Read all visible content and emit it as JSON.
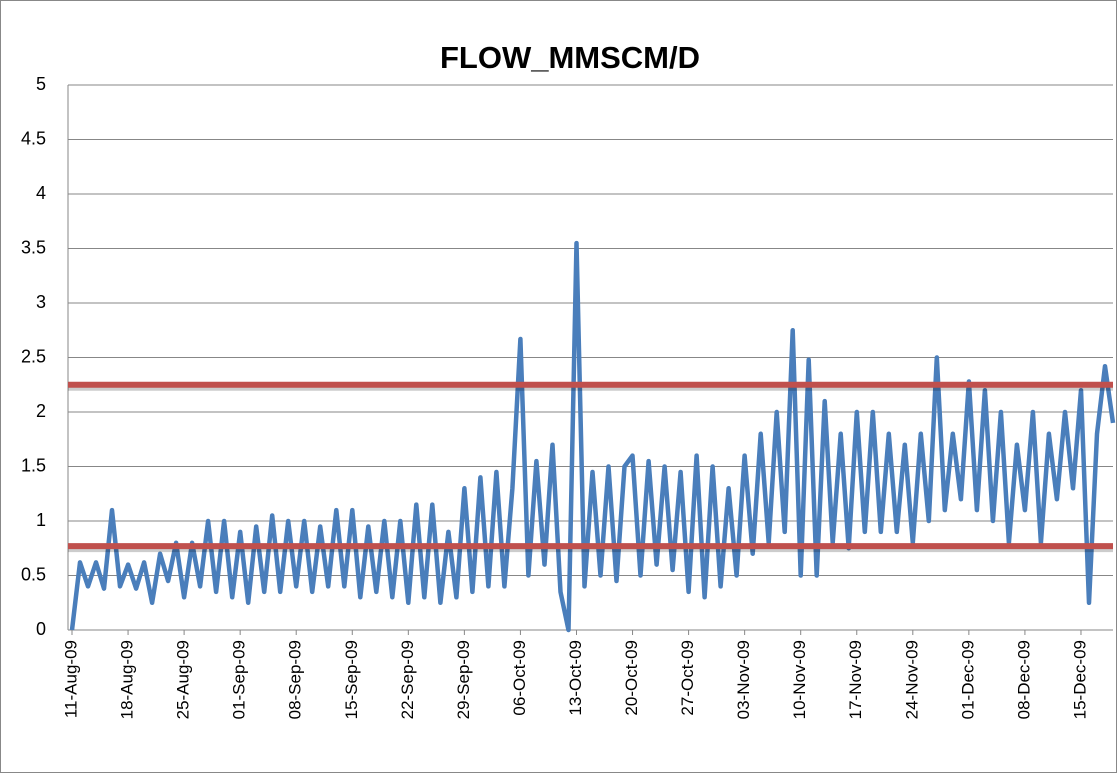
{
  "chart_data": {
    "type": "line",
    "title": "FLOW_MMSCM/D",
    "categories": [
      "11-Aug-09",
      null,
      null,
      null,
      null,
      null,
      null,
      "18-Aug-09",
      null,
      null,
      null,
      null,
      null,
      null,
      "25-Aug-09",
      null,
      null,
      null,
      null,
      null,
      null,
      "01-Sep-09",
      null,
      null,
      null,
      null,
      null,
      null,
      "08-Sep-09",
      null,
      null,
      null,
      null,
      null,
      null,
      "15-Sep-09",
      null,
      null,
      null,
      null,
      null,
      null,
      "22-Sep-09",
      null,
      null,
      null,
      null,
      null,
      null,
      "29-Sep-09",
      null,
      null,
      null,
      null,
      null,
      null,
      "06-Oct-09",
      null,
      null,
      null,
      null,
      null,
      null,
      "13-Oct-09",
      null,
      null,
      null,
      null,
      null,
      null,
      "20-Oct-09",
      null,
      null,
      null,
      null,
      null,
      null,
      "27-Oct-09",
      null,
      null,
      null,
      null,
      null,
      null,
      "03-Nov-09",
      null,
      null,
      null,
      null,
      null,
      null,
      "10-Nov-09",
      null,
      null,
      null,
      null,
      null,
      null,
      "17-Nov-09",
      null,
      null,
      null,
      null,
      null,
      null,
      "24-Nov-09",
      null,
      null,
      null,
      null,
      null,
      null,
      "01-Dec-09",
      null,
      null,
      null,
      null,
      null,
      null,
      "08-Dec-09",
      null,
      null,
      null,
      null,
      null,
      null,
      "15-Dec-09",
      null,
      null,
      null,
      null
    ],
    "values": [
      0,
      0.62,
      0.4,
      0.62,
      0.38,
      1.1,
      0.4,
      0.6,
      0.38,
      0.62,
      0.25,
      0.7,
      0.45,
      0.8,
      0.3,
      0.8,
      0.4,
      1.0,
      0.35,
      1.0,
      0.3,
      0.9,
      0.25,
      0.95,
      0.35,
      1.05,
      0.35,
      1.0,
      0.4,
      1.0,
      0.35,
      0.95,
      0.4,
      1.1,
      0.4,
      1.1,
      0.3,
      0.95,
      0.35,
      1.0,
      0.3,
      1.0,
      0.25,
      1.15,
      0.3,
      1.15,
      0.25,
      0.9,
      0.3,
      1.3,
      0.35,
      1.4,
      0.4,
      1.45,
      0.4,
      1.3,
      2.67,
      0.5,
      1.55,
      0.6,
      1.7,
      0.35,
      0,
      3.55,
      0.4,
      1.45,
      0.5,
      1.5,
      0.45,
      1.5,
      1.6,
      0.5,
      1.55,
      0.6,
      1.5,
      0.55,
      1.45,
      0.35,
      1.6,
      0.3,
      1.5,
      0.4,
      1.3,
      0.5,
      1.6,
      0.7,
      1.8,
      0.8,
      2.0,
      0.9,
      2.75,
      0.5,
      2.48,
      0.5,
      2.1,
      0.8,
      1.8,
      0.75,
      2.0,
      0.9,
      2.0,
      0.9,
      1.8,
      0.9,
      1.7,
      0.8,
      1.8,
      1.0,
      2.5,
      1.1,
      1.8,
      1.2,
      2.28,
      1.1,
      2.2,
      1.0,
      2.0,
      0.8,
      1.7,
      1.1,
      2.0,
      0.8,
      1.8,
      1.2,
      2.0,
      1.3,
      2.2,
      0.25,
      1.8,
      2.42,
      1.9
    ],
    "color": "#4a7ebb",
    "ylim": [
      0,
      5
    ],
    "yticks": [
      0,
      0.5,
      1,
      1.5,
      2,
      2.5,
      3,
      3.5,
      4,
      4.5,
      5
    ],
    "grid": true,
    "reference_lines": [
      {
        "value": 2.25,
        "color": "#c0504d"
      },
      {
        "value": 0.77,
        "color": "#c0504d"
      }
    ]
  }
}
